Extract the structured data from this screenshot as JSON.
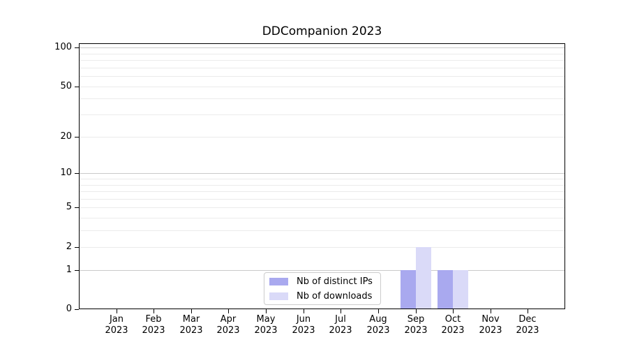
{
  "chart_data": {
    "type": "bar",
    "title": "DDCompanion 2023",
    "categories": [
      "Jan",
      "Feb",
      "Mar",
      "Apr",
      "May",
      "Jun",
      "Jul",
      "Aug",
      "Sep",
      "Oct",
      "Nov",
      "Dec"
    ],
    "x_year": "2023",
    "series": [
      {
        "key": "distinct-ips",
        "name": "Nb of distinct IPs",
        "color": "#a9a9ef",
        "values": [
          0,
          0,
          0,
          0,
          0,
          0,
          0,
          0,
          1,
          1,
          0,
          0
        ]
      },
      {
        "key": "downloads",
        "name": "Nb of downloads",
        "color": "#dadaf8",
        "values": [
          0,
          0,
          0,
          0,
          0,
          0,
          0,
          0,
          2,
          1,
          0,
          0
        ]
      }
    ],
    "y_scale": "log1p",
    "ylim": [
      0,
      108
    ],
    "y_tick_values": [
      0,
      1,
      2,
      5,
      10,
      20,
      50,
      100
    ],
    "y_gridlines": {
      "major": [
        1,
        10,
        100
      ],
      "minor": [
        2,
        3,
        4,
        5,
        6,
        7,
        8,
        9,
        20,
        30,
        40,
        50,
        60,
        70,
        80,
        90
      ]
    },
    "grid": true,
    "legend_position": "lower center"
  },
  "colors": {
    "bar_distinct_ips": "#a9a9ef",
    "bar_downloads": "#dadaf8",
    "major_grid": "#c9c9c9",
    "minor_grid": "#ebebeb",
    "spine": "#000000",
    "legend_border": "#cccccc",
    "text": "#000000",
    "background": "#ffffff"
  }
}
